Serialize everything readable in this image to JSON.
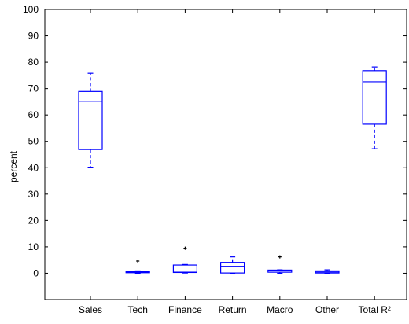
{
  "chart_data": {
    "type": "box",
    "ylabel": "percent",
    "ylim": [
      -10,
      100
    ],
    "yticks": [
      0,
      10,
      20,
      30,
      40,
      50,
      60,
      70,
      80,
      90,
      100
    ],
    "categories": [
      "Sales",
      "Tech",
      "Finance",
      "Return",
      "Macro",
      "Other",
      "Total R²"
    ],
    "boxes": [
      {
        "category": "Sales",
        "whisker_low": 40.2,
        "q1": 46.9,
        "median": 65.2,
        "q3": 68.9,
        "whisker_high": 75.8,
        "outliers": []
      },
      {
        "category": "Tech",
        "whisker_low": 0.0,
        "q1": 0.2,
        "median": 0.4,
        "q3": 0.6,
        "whisker_high": 0.9,
        "outliers": [
          4.6
        ]
      },
      {
        "category": "Finance",
        "whisker_low": 0.1,
        "q1": 0.3,
        "median": 0.8,
        "q3": 3.1,
        "whisker_high": 3.3,
        "outliers": [
          9.5
        ]
      },
      {
        "category": "Return",
        "whisker_low": 0.0,
        "q1": 0.1,
        "median": 2.6,
        "q3": 4.1,
        "whisker_high": 6.2,
        "outliers": []
      },
      {
        "category": "Macro",
        "whisker_low": 0.0,
        "q1": 0.4,
        "median": 0.9,
        "q3": 1.2,
        "whisker_high": 1.3,
        "outliers": [
          6.2
        ]
      },
      {
        "category": "Other",
        "whisker_low": 0.0,
        "q1": 0.1,
        "median": 0.5,
        "q3": 0.9,
        "whisker_high": 1.3,
        "outliers": []
      },
      {
        "category": "Total R²",
        "whisker_low": 47.2,
        "q1": 56.5,
        "median": 72.6,
        "q3": 76.8,
        "whisker_high": 78.2,
        "outliers": []
      }
    ],
    "box_color": "#0000ff",
    "outlier_color": "#000000",
    "grid": false,
    "legend": "none"
  }
}
